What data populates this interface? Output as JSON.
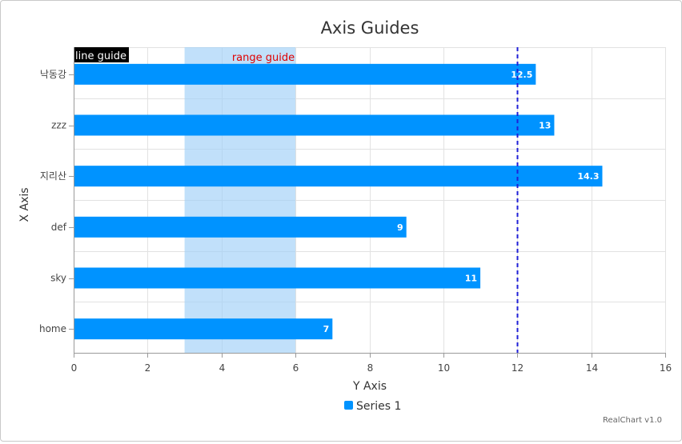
{
  "chart_data": {
    "type": "bar",
    "orientation": "horizontal",
    "title": "Axis Guides",
    "xlabel": "X Axis",
    "ylabel": "Y Axis",
    "categories": [
      "낙동강",
      "zzz",
      "지리산",
      "def",
      "sky",
      "home"
    ],
    "series": [
      {
        "name": "Series 1",
        "values": [
          12.5,
          13,
          14.3,
          9,
          11,
          7
        ]
      }
    ],
    "value_axis": {
      "min": 0,
      "max": 16,
      "ticks": [
        "0",
        "2",
        "4",
        "6",
        "8",
        "10",
        "12",
        "14",
        "16"
      ]
    },
    "guides": {
      "line": {
        "value": 12,
        "label": "line guide"
      },
      "range": {
        "from": 3,
        "to": 6,
        "label": "range guide"
      }
    },
    "data_labels": [
      "12.5",
      "13",
      "14.3",
      "9",
      "11",
      "7"
    ],
    "grid": true,
    "legend_position": "bottom"
  },
  "colors": {
    "bar": "#0093ff",
    "range_fill": "#9fd0f8",
    "line_guide": "#1f1fd8",
    "range_label": "#e00000",
    "line_label_bg": "#000000",
    "line_label_text": "#ffffff"
  },
  "credits": "RealChart v1.0"
}
